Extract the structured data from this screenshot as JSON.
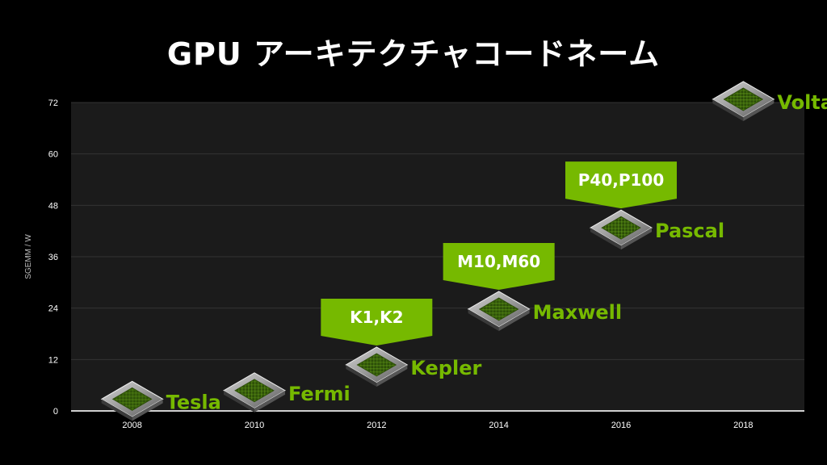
{
  "slide": {
    "title": "GPU アーキテクチャコードネーム"
  },
  "colors": {
    "background": "#000000",
    "plot_area": "#1b1b1b",
    "accent": "#76b900",
    "grid": "#333333",
    "text": "#ffffff"
  },
  "chart_data": {
    "type": "scatter",
    "title": "GPU アーキテクチャコードネーム",
    "xlabel": "",
    "ylabel": "SGEMM / W",
    "xlim": [
      2007,
      2019
    ],
    "ylim": [
      0,
      72
    ],
    "x_ticks": [
      "2008",
      "2010",
      "2012",
      "2014",
      "2016",
      "2018"
    ],
    "y_ticks": [
      "0",
      "12",
      "24",
      "36",
      "48",
      "60",
      "72"
    ],
    "grid": "horizontal",
    "marker": "gpu-chip-icon",
    "points": [
      {
        "label": "Tesla",
        "x": 2008,
        "y": 2
      },
      {
        "label": "Fermi",
        "x": 2010,
        "y": 4
      },
      {
        "label": "Kepler",
        "x": 2012,
        "y": 10
      },
      {
        "label": "Maxwell",
        "x": 2014,
        "y": 23
      },
      {
        "label": "Pascal",
        "x": 2016,
        "y": 42
      },
      {
        "label": "Volta",
        "x": 2018,
        "y": 72
      }
    ],
    "callouts": [
      {
        "text": "K1,K2",
        "x": 2012
      },
      {
        "text": "M10,M60",
        "x": 2014
      },
      {
        "text": "P40,P100",
        "x": 2016
      }
    ]
  }
}
